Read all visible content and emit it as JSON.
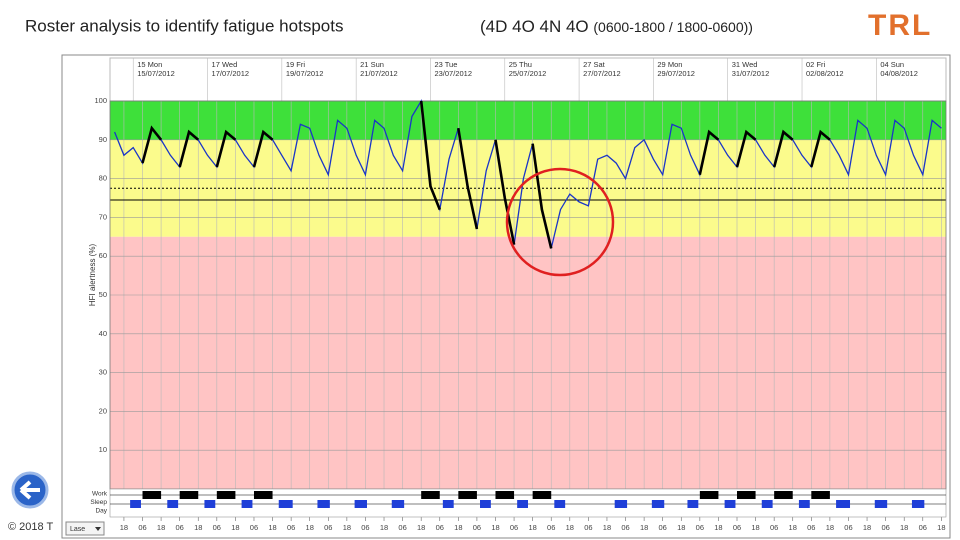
{
  "title": "Roster analysis to identify fatigue hotspots",
  "subtitle": "(4D 4O 4N 4O",
  "subtitle_detail": "(0600-1800 / 1800-0600))",
  "logo": "TRL",
  "copyright": "© 2018 T",
  "chart_data": {
    "type": "line",
    "ylabel": "HFI alertness (%)",
    "ylim": [
      0,
      100
    ],
    "yticks": [
      10,
      20,
      30,
      40,
      50,
      60,
      70,
      80,
      90,
      100
    ],
    "xlim": [
      -15,
      525
    ],
    "xticks": [
      {
        "value": -6,
        "label": "18"
      },
      {
        "value": 6,
        "label": "06"
      },
      {
        "value": 18,
        "label": "18"
      },
      {
        "value": 30,
        "label": "06"
      },
      {
        "value": 42,
        "label": "18"
      },
      {
        "value": 54,
        "label": "06"
      },
      {
        "value": 66,
        "label": "18"
      },
      {
        "value": 78,
        "label": "06"
      },
      {
        "value": 90,
        "label": "18"
      },
      {
        "value": 102,
        "label": "06"
      },
      {
        "value": 114,
        "label": "18"
      },
      {
        "value": 126,
        "label": "06"
      },
      {
        "value": 138,
        "label": "18"
      },
      {
        "value": 150,
        "label": "06"
      },
      {
        "value": 162,
        "label": "18"
      },
      {
        "value": 174,
        "label": "06"
      },
      {
        "value": 186,
        "label": "18"
      },
      {
        "value": 198,
        "label": "06"
      },
      {
        "value": 210,
        "label": "18"
      },
      {
        "value": 222,
        "label": "06"
      },
      {
        "value": 234,
        "label": "18"
      },
      {
        "value": 246,
        "label": "06"
      },
      {
        "value": 258,
        "label": "18"
      },
      {
        "value": 270,
        "label": "06"
      },
      {
        "value": 282,
        "label": "18"
      },
      {
        "value": 294,
        "label": "06"
      },
      {
        "value": 306,
        "label": "18"
      },
      {
        "value": 318,
        "label": "06"
      },
      {
        "value": 330,
        "label": "18"
      },
      {
        "value": 342,
        "label": "06"
      },
      {
        "value": 354,
        "label": "18"
      },
      {
        "value": 366,
        "label": "06"
      },
      {
        "value": 378,
        "label": "18"
      },
      {
        "value": 390,
        "label": "06"
      },
      {
        "value": 402,
        "label": "18"
      },
      {
        "value": 414,
        "label": "06"
      },
      {
        "value": 426,
        "label": "18"
      },
      {
        "value": 438,
        "label": "06"
      },
      {
        "value": 450,
        "label": "18"
      },
      {
        "value": 462,
        "label": "06"
      },
      {
        "value": 474,
        "label": "18"
      },
      {
        "value": 486,
        "label": "06"
      },
      {
        "value": 498,
        "label": "18"
      },
      {
        "value": 510,
        "label": "06"
      },
      {
        "value": 522,
        "label": "18"
      }
    ],
    "date_labels": [
      {
        "value": 0,
        "day": "15 Mon",
        "date": "15/07/2012"
      },
      {
        "value": 48,
        "day": "17 Wed",
        "date": "17/07/2012"
      },
      {
        "value": 96,
        "day": "19 Fri",
        "date": "19/07/2012"
      },
      {
        "value": 144,
        "day": "21 Sun",
        "date": "21/07/2012"
      },
      {
        "value": 192,
        "day": "23 Tue",
        "date": "23/07/2012"
      },
      {
        "value": 240,
        "day": "25 Thu",
        "date": "25/07/2012"
      },
      {
        "value": 288,
        "day": "27 Sat",
        "date": "27/07/2012"
      },
      {
        "value": 336,
        "day": "29 Mon",
        "date": "29/07/2012"
      },
      {
        "value": 384,
        "day": "31 Wed",
        "date": "31/07/2012"
      },
      {
        "value": 432,
        "day": "02 Fri",
        "date": "02/08/2012"
      },
      {
        "value": 480,
        "day": "04 Sun",
        "date": "04/08/2012"
      }
    ],
    "bands": [
      {
        "from": 90,
        "to": 100,
        "color": "#3ee03a"
      },
      {
        "from": 65,
        "to": 90,
        "color": "#fbfb8c"
      },
      {
        "from": 0,
        "to": 65,
        "color": "#ffc4c4"
      }
    ],
    "thresholds": [
      {
        "value": 77.5,
        "dash": true
      },
      {
        "value": 74.5,
        "dash": false
      }
    ],
    "series": [
      {
        "name": "Alertness",
        "color": "#1a35c8",
        "work_color": "#000000",
        "x": [
          -12,
          -6,
          0,
          6,
          12,
          18,
          24,
          30,
          36,
          42,
          48,
          54,
          60,
          66,
          72,
          78,
          84,
          90,
          96,
          102,
          108,
          114,
          120,
          126,
          132,
          138,
          144,
          150,
          156,
          162,
          168,
          174,
          180,
          186,
          192,
          198,
          204,
          210,
          216,
          222,
          228,
          234,
          240,
          246,
          252,
          258,
          264,
          270,
          276,
          282,
          288,
          294,
          300,
          306,
          312,
          318,
          324,
          330,
          336,
          342,
          348,
          354,
          360,
          366,
          372,
          378,
          384,
          390,
          396,
          402,
          408,
          414,
          420,
          426,
          432,
          438,
          444,
          450,
          456,
          462,
          468,
          474,
          480,
          486,
          492,
          498,
          504,
          510,
          516,
          522
        ],
        "values": [
          92,
          86,
          88,
          84,
          93,
          90,
          86,
          83,
          92,
          90,
          86,
          83,
          92,
          90,
          86,
          83,
          92,
          90,
          86,
          82,
          94,
          93,
          86,
          81,
          95,
          93,
          86,
          81,
          95,
          93,
          86,
          82,
          96,
          100,
          78,
          72,
          85,
          93,
          78,
          67,
          82,
          90,
          75,
          63,
          80,
          89,
          72,
          62,
          72,
          76,
          74,
          73,
          85,
          86,
          84,
          80,
          88,
          90,
          85,
          81,
          94,
          93,
          86,
          81,
          92,
          90,
          86,
          83,
          92,
          90,
          86,
          83,
          92,
          90,
          86,
          83,
          92,
          90,
          86,
          81,
          95,
          93,
          86,
          81,
          95,
          93,
          86,
          81,
          95,
          93
        ]
      }
    ],
    "strip_labels": [
      "Work",
      "Sleep",
      "Day"
    ],
    "work_periods": [
      [
        6,
        18
      ],
      [
        30,
        42
      ],
      [
        54,
        66
      ],
      [
        78,
        90
      ],
      [
        186,
        198
      ],
      [
        210,
        222
      ],
      [
        234,
        246
      ],
      [
        258,
        270
      ],
      [
        366,
        378
      ],
      [
        390,
        402
      ],
      [
        414,
        426
      ],
      [
        438,
        450
      ]
    ],
    "sleep_periods": [
      [
        -2,
        5
      ],
      [
        22,
        29
      ],
      [
        46,
        53
      ],
      [
        70,
        77
      ],
      [
        94,
        103
      ],
      [
        119,
        127
      ],
      [
        143,
        151
      ],
      [
        167,
        175
      ],
      [
        200,
        207
      ],
      [
        224,
        231
      ],
      [
        248,
        255
      ],
      [
        272,
        279
      ],
      [
        311,
        319
      ],
      [
        335,
        343
      ],
      [
        358,
        365
      ],
      [
        382,
        389
      ],
      [
        406,
        413
      ],
      [
        430,
        437
      ],
      [
        454,
        463
      ],
      [
        479,
        487
      ],
      [
        503,
        511
      ]
    ],
    "selector": "Lase"
  }
}
